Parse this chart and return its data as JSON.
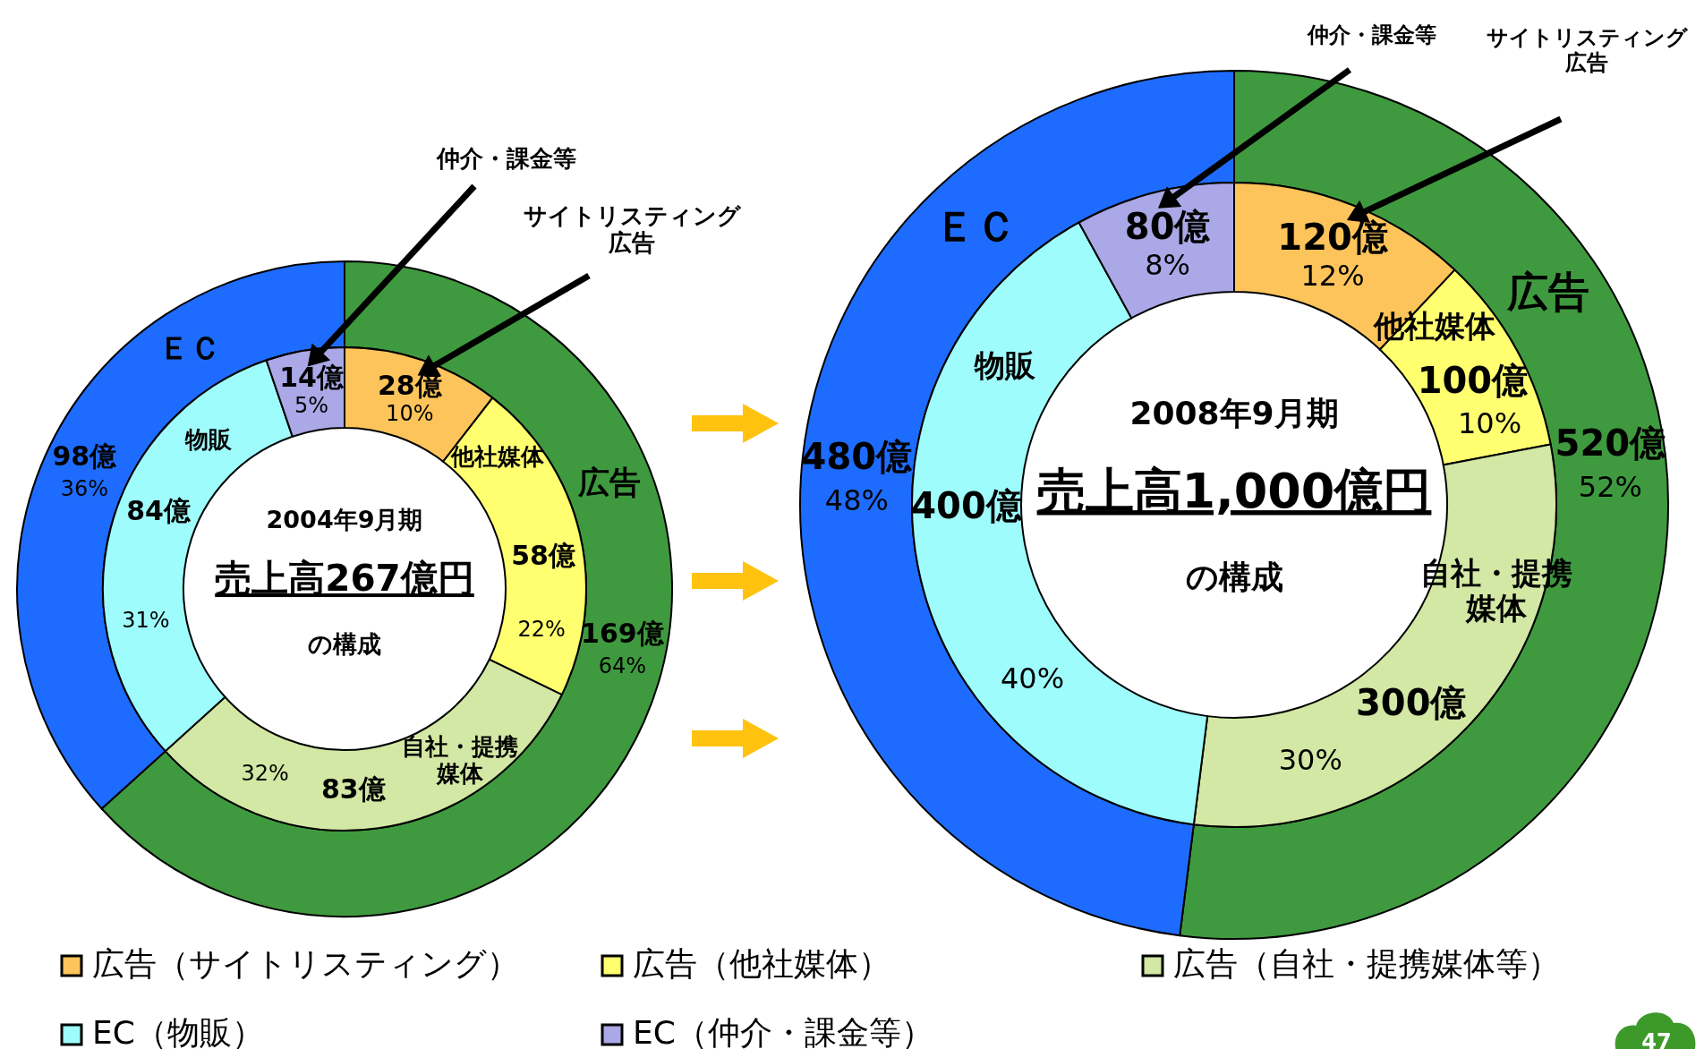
{
  "chart_data": [
    {
      "type": "donut",
      "categories": [
        "広告",
        "ＥＣ"
      ],
      "values": [
        169,
        98
      ],
      "colors": [
        "#3f9a3f",
        "#1e6cff"
      ],
      "value_labels": [
        "169億",
        "98億"
      ],
      "annotations": [
        "64%",
        "36%"
      ]
    },
    {
      "type": "donut",
      "title": "2004年9月期",
      "subtitle": "売上高267億円",
      "categories": [
        "広告（サイトリスティング）",
        "広告（他社媒体）",
        "広告（自社・提携媒体等）",
        "EC（物販）",
        "EC（仲介・課金等）"
      ],
      "values": [
        28,
        58,
        83,
        84,
        14
      ],
      "colors": [
        "#fcc45a",
        "#ffff70",
        "#d2e8a4",
        "#9ffcfc",
        "#aaa8e6"
      ],
      "value_labels": [
        "28億",
        "58億",
        "83億",
        "84億",
        "14億"
      ],
      "legend": "bottom",
      "annotations": [
        "の構成",
        "10%",
        "22%",
        "32%",
        "31%",
        "5%",
        "他社媒体",
        "自社・提携媒体",
        "物販",
        "仲介・課金等",
        "サイトリスティング広告"
      ]
    },
    {
      "type": "donut",
      "categories": [
        "広告",
        "ＥＣ"
      ],
      "values": [
        520,
        480
      ],
      "colors": [
        "#3f9a3f",
        "#1e6cff"
      ],
      "value_labels": [
        "520億",
        "480億"
      ],
      "annotations": [
        "52%",
        "48%"
      ]
    },
    {
      "type": "donut",
      "title": "2008年9月期",
      "subtitle": "売上高1,000億円",
      "categories": [
        null,
        null,
        null,
        null,
        null
      ],
      "values": [
        120,
        100,
        300,
        400,
        80
      ],
      "colors": [
        "#fcc45a",
        "#ffff70",
        "#d2e8a4",
        "#9ffcfc",
        "#aaa8e6"
      ],
      "value_labels": [
        "120億",
        "100億",
        "300億",
        "400億",
        "80億"
      ],
      "annotations": [
        "の構成",
        "12%",
        "10%",
        "30%",
        "40%",
        "8%",
        "他社媒体",
        "自社・提携媒体",
        "物販",
        "仲介・課金等",
        "サイトリスティング広告",
        "47"
      ]
    }
  ]
}
